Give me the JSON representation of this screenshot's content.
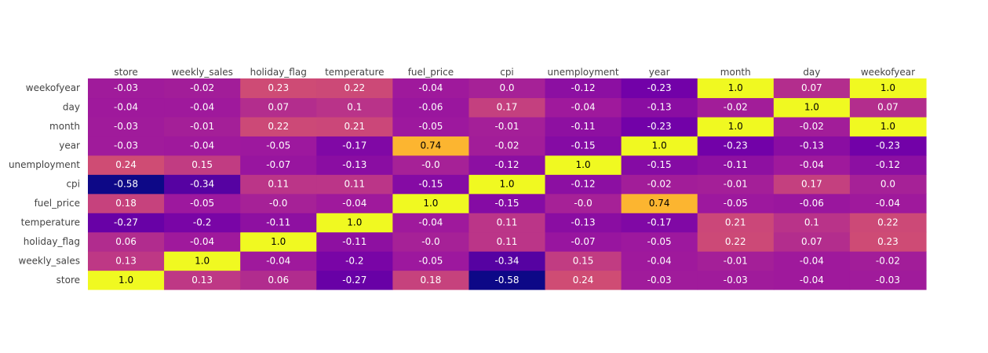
{
  "chart_data": {
    "type": "heatmap",
    "title": "",
    "colorscale": "plasma",
    "zlim": [
      -0.58,
      1.0
    ],
    "x": [
      "store",
      "weekly_sales",
      "holiday_flag",
      "temperature",
      "fuel_price",
      "cpi",
      "unemployment",
      "year",
      "month",
      "day",
      "weekofyear"
    ],
    "y": [
      "store",
      "weekly_sales",
      "holiday_flag",
      "temperature",
      "fuel_price",
      "cpi",
      "unemployment",
      "year",
      "month",
      "day",
      "weekofyear"
    ],
    "z": [
      [
        1.0,
        0.13,
        0.06,
        -0.27,
        0.18,
        -0.58,
        0.24,
        -0.03,
        -0.03,
        -0.04,
        -0.03
      ],
      [
        0.13,
        1.0,
        -0.04,
        -0.2,
        -0.05,
        -0.34,
        0.15,
        -0.04,
        -0.01,
        -0.04,
        -0.02
      ],
      [
        0.06,
        -0.04,
        1.0,
        -0.11,
        -0.0,
        0.11,
        -0.07,
        -0.05,
        0.22,
        0.07,
        0.23
      ],
      [
        -0.27,
        -0.2,
        -0.11,
        1.0,
        -0.04,
        0.11,
        -0.13,
        -0.17,
        0.21,
        0.1,
        0.22
      ],
      [
        0.18,
        -0.05,
        -0.0,
        -0.04,
        1.0,
        -0.15,
        -0.0,
        0.74,
        -0.05,
        -0.06,
        -0.04
      ],
      [
        -0.58,
        -0.34,
        0.11,
        0.11,
        -0.15,
        1.0,
        -0.12,
        -0.02,
        -0.01,
        0.17,
        0.0
      ],
      [
        0.24,
        0.15,
        -0.07,
        -0.13,
        -0.0,
        -0.12,
        1.0,
        -0.15,
        -0.11,
        -0.04,
        -0.12
      ],
      [
        -0.03,
        -0.04,
        -0.05,
        -0.17,
        0.74,
        -0.02,
        -0.15,
        1.0,
        -0.23,
        -0.13,
        -0.23
      ],
      [
        -0.03,
        -0.01,
        0.22,
        0.21,
        -0.05,
        -0.01,
        -0.11,
        -0.23,
        1.0,
        -0.02,
        1.0
      ],
      [
        -0.04,
        -0.04,
        0.07,
        0.1,
        -0.06,
        0.17,
        -0.04,
        -0.13,
        -0.02,
        1.0,
        0.07
      ],
      [
        -0.03,
        -0.02,
        0.23,
        0.22,
        -0.04,
        0.0,
        -0.12,
        -0.23,
        1.0,
        0.07,
        1.0
      ]
    ],
    "text": [
      [
        "1.0",
        "0.13",
        "0.06",
        "-0.27",
        "0.18",
        "-0.58",
        "0.24",
        "-0.03",
        "-0.03",
        "-0.04",
        "-0.03"
      ],
      [
        "0.13",
        "1.0",
        "-0.04",
        "-0.2",
        "-0.05",
        "-0.34",
        "0.15",
        "-0.04",
        "-0.01",
        "-0.04",
        "-0.02"
      ],
      [
        "0.06",
        "-0.04",
        "1.0",
        "-0.11",
        "-0.0",
        "0.11",
        "-0.07",
        "-0.05",
        "0.22",
        "0.07",
        "0.23"
      ],
      [
        "-0.27",
        "-0.2",
        "-0.11",
        "1.0",
        "-0.04",
        "0.11",
        "-0.13",
        "-0.17",
        "0.21",
        "0.1",
        "0.22"
      ],
      [
        "0.18",
        "-0.05",
        "-0.0",
        "-0.04",
        "1.0",
        "-0.15",
        "-0.0",
        "0.74",
        "-0.05",
        "-0.06",
        "-0.04"
      ],
      [
        "-0.58",
        "-0.34",
        "0.11",
        "0.11",
        "-0.15",
        "1.0",
        "-0.12",
        "-0.02",
        "-0.01",
        "0.17",
        "0.0"
      ],
      [
        "0.24",
        "0.15",
        "-0.07",
        "-0.13",
        "-0.0",
        "-0.12",
        "1.0",
        "-0.15",
        "-0.11",
        "-0.04",
        "-0.12"
      ],
      [
        "-0.03",
        "-0.04",
        "-0.05",
        "-0.17",
        "0.74",
        "-0.02",
        "-0.15",
        "1.0",
        "-0.23",
        "-0.13",
        "-0.23"
      ],
      [
        "-0.03",
        "-0.01",
        "0.22",
        "0.21",
        "-0.05",
        "-0.01",
        "-0.11",
        "-0.23",
        "1.0",
        "-0.02",
        "1.0"
      ],
      [
        "-0.04",
        "-0.04",
        "0.07",
        "0.1",
        "-0.06",
        "0.17",
        "-0.04",
        "-0.13",
        "-0.02",
        "1.0",
        "0.07"
      ],
      [
        "-0.03",
        "-0.02",
        "0.23",
        "0.22",
        "-0.04",
        "0.0",
        "-0.12",
        "-0.23",
        "1.0",
        "0.07",
        "1.0"
      ]
    ],
    "xaxis_side": "top",
    "y_order": "bottom-to-top",
    "legend": "none",
    "grid": false
  }
}
